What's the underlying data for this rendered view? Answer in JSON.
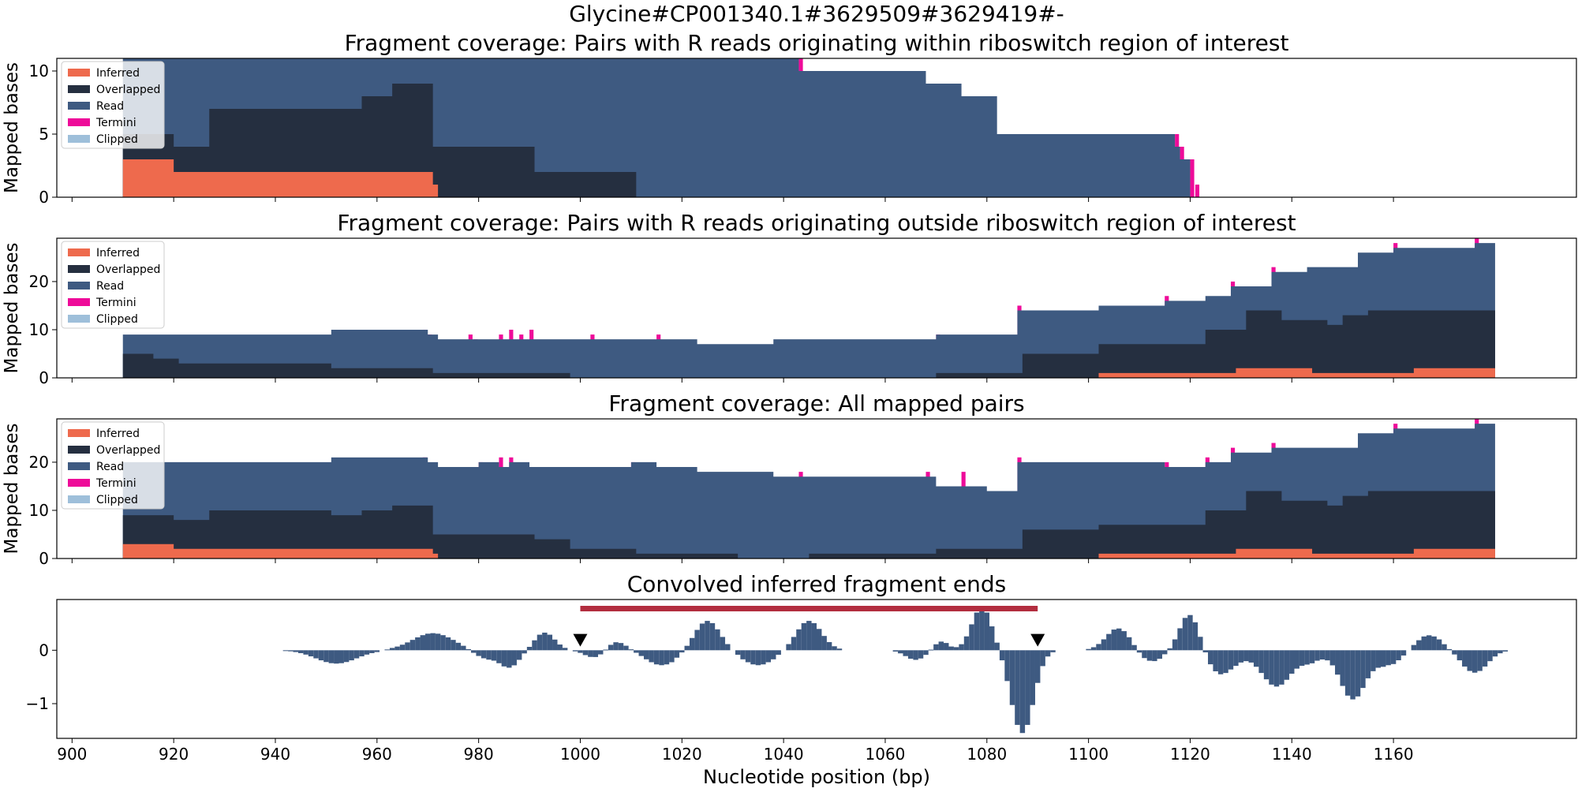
{
  "figure": {
    "suptitle": "Glycine#CP001340.1#3629509#3629419#-",
    "xlabel": "Nucleotide position (bp)"
  },
  "colors": {
    "inferred": "#ee6a4d",
    "overlapped": "#252f40",
    "read": "#3e5a81",
    "termini": "#ee0b99",
    "clipped": "#9ebfda",
    "marker": "#b22d3f",
    "ends": "#3e5a81"
  },
  "chart_data": [
    {
      "type": "area",
      "title": "Fragment coverage: Pairs with R reads originating within riboswitch region of interest",
      "ylabel": "Mapped bases",
      "xlim": [
        897,
        1196
      ],
      "ylim": [
        0,
        11
      ],
      "yticks": [
        0,
        5,
        10
      ],
      "legend": [
        "Inferred",
        "Overlapped",
        "Read",
        "Termini",
        "Clipped"
      ],
      "legend_position": "upper-left",
      "series": {
        "inferred": [
          [
            910,
            3
          ],
          [
            920,
            2
          ],
          [
            970,
            2
          ],
          [
            971,
            1
          ],
          [
            972,
            0
          ]
        ],
        "overlapped": [
          [
            910,
            5
          ],
          [
            920,
            4
          ],
          [
            927,
            7
          ],
          [
            957,
            8
          ],
          [
            963,
            9
          ],
          [
            971,
            4
          ],
          [
            991,
            2
          ],
          [
            1011,
            0
          ]
        ],
        "read": [
          [
            910,
            11
          ],
          [
            1043,
            10
          ],
          [
            1044,
            10
          ],
          [
            1068,
            9
          ],
          [
            1075,
            8
          ],
          [
            1082,
            5
          ],
          [
            1117,
            4
          ],
          [
            1118,
            3
          ],
          [
            1120,
            0
          ]
        ],
        "termini": [
          [
            1043,
            11
          ],
          [
            1044,
            0
          ],
          [
            1068,
            9
          ],
          [
            1069,
            0
          ],
          [
            1075,
            8
          ],
          [
            1076,
            0
          ],
          [
            1117,
            5
          ],
          [
            1118,
            0
          ],
          [
            1118,
            4
          ],
          [
            1119,
            0
          ],
          [
            1120,
            3
          ],
          [
            1121,
            1
          ],
          [
            1122,
            0
          ]
        ]
      }
    },
    {
      "type": "area",
      "title": "Fragment coverage: Pairs with R reads originating outside riboswitch region of interest",
      "ylabel": "Mapped bases",
      "xlim": [
        897,
        1196
      ],
      "ylim": [
        0,
        29
      ],
      "yticks": [
        0,
        10,
        20
      ],
      "legend": [
        "Inferred",
        "Overlapped",
        "Read",
        "Termini",
        "Clipped"
      ],
      "legend_position": "upper-left",
      "series": {
        "inferred": [
          [
            910,
            0
          ],
          [
            1102,
            1
          ],
          [
            1129,
            2
          ],
          [
            1144,
            1
          ],
          [
            1164,
            2
          ],
          [
            1180,
            0
          ]
        ],
        "overlapped": [
          [
            910,
            5
          ],
          [
            916,
            4
          ],
          [
            921,
            3
          ],
          [
            951,
            2
          ],
          [
            971,
            1
          ],
          [
            998,
            0
          ],
          [
            1070,
            1
          ],
          [
            1087,
            5
          ],
          [
            1102,
            7
          ],
          [
            1123,
            10
          ],
          [
            1131,
            14
          ],
          [
            1138,
            12
          ],
          [
            1147,
            11
          ],
          [
            1150,
            13
          ],
          [
            1155,
            14
          ],
          [
            1168,
            14
          ],
          [
            1180,
            16
          ]
        ],
        "read": [
          [
            910,
            9
          ],
          [
            951,
            10
          ],
          [
            970,
            9
          ],
          [
            972,
            8
          ],
          [
            1002,
            8
          ],
          [
            1015,
            8
          ],
          [
            1023,
            7
          ],
          [
            1038,
            8
          ],
          [
            1070,
            9
          ],
          [
            1086,
            14
          ],
          [
            1102,
            15
          ],
          [
            1115,
            16
          ],
          [
            1123,
            17
          ],
          [
            1128,
            19
          ],
          [
            1136,
            22
          ],
          [
            1143,
            23
          ],
          [
            1153,
            26
          ],
          [
            1160,
            27
          ],
          [
            1176,
            28
          ],
          [
            1180,
            29
          ]
        ],
        "termini": [
          [
            969,
            10
          ],
          [
            970,
            9
          ],
          [
            978,
            9
          ],
          [
            979,
            8
          ],
          [
            984,
            9
          ],
          [
            986,
            10
          ],
          [
            988,
            9
          ],
          [
            990,
            10
          ],
          [
            1002,
            9
          ],
          [
            1015,
            9
          ],
          [
            1070,
            9
          ],
          [
            1086,
            15
          ],
          [
            1115,
            17
          ],
          [
            1128,
            20
          ],
          [
            1136,
            23
          ],
          [
            1160,
            28
          ],
          [
            1176,
            29
          ]
        ]
      }
    },
    {
      "type": "area",
      "title": "Fragment coverage: All mapped pairs",
      "ylabel": "Mapped bases",
      "xlim": [
        897,
        1196
      ],
      "ylim": [
        0,
        29
      ],
      "yticks": [
        0,
        10,
        20
      ],
      "legend": [
        "Inferred",
        "Overlapped",
        "Read",
        "Termini",
        "Clipped"
      ],
      "legend_position": "upper-left",
      "series": {
        "inferred": [
          [
            910,
            3
          ],
          [
            920,
            2
          ],
          [
            970,
            2
          ],
          [
            971,
            1
          ],
          [
            972,
            0
          ],
          [
            1102,
            1
          ],
          [
            1129,
            2
          ],
          [
            1144,
            1
          ],
          [
            1164,
            2
          ],
          [
            1180,
            0
          ]
        ],
        "overlapped": [
          [
            910,
            9
          ],
          [
            920,
            8
          ],
          [
            927,
            10
          ],
          [
            951,
            9
          ],
          [
            957,
            10
          ],
          [
            963,
            11
          ],
          [
            971,
            5
          ],
          [
            991,
            4
          ],
          [
            998,
            2
          ],
          [
            1011,
            1
          ],
          [
            1031,
            0
          ],
          [
            1045,
            1
          ],
          [
            1070,
            2
          ],
          [
            1087,
            6
          ],
          [
            1102,
            7
          ],
          [
            1123,
            10
          ],
          [
            1131,
            14
          ],
          [
            1138,
            12
          ],
          [
            1147,
            11
          ],
          [
            1150,
            13
          ],
          [
            1155,
            14
          ],
          [
            1168,
            14
          ],
          [
            1180,
            16
          ]
        ],
        "read": [
          [
            910,
            20
          ],
          [
            951,
            21
          ],
          [
            970,
            20
          ],
          [
            972,
            19
          ],
          [
            980,
            20
          ],
          [
            984,
            19
          ],
          [
            986,
            20
          ],
          [
            990,
            19
          ],
          [
            1002,
            19
          ],
          [
            1010,
            20
          ],
          [
            1015,
            19
          ],
          [
            1023,
            18
          ],
          [
            1038,
            17
          ],
          [
            1070,
            15
          ],
          [
            1080,
            14
          ],
          [
            1086,
            20
          ],
          [
            1115,
            19
          ],
          [
            1123,
            20
          ],
          [
            1128,
            22
          ],
          [
            1136,
            23
          ],
          [
            1153,
            26
          ],
          [
            1160,
            27
          ],
          [
            1176,
            28
          ],
          [
            1180,
            29
          ]
        ],
        "termini": [
          [
            969,
            21
          ],
          [
            980,
            20
          ],
          [
            984,
            21
          ],
          [
            986,
            21
          ],
          [
            1010,
            20
          ],
          [
            1043,
            18
          ],
          [
            1068,
            18
          ],
          [
            1075,
            18
          ],
          [
            1086,
            21
          ],
          [
            1115,
            20
          ],
          [
            1123,
            21
          ],
          [
            1128,
            23
          ],
          [
            1136,
            24
          ],
          [
            1160,
            28
          ],
          [
            1176,
            29
          ]
        ]
      }
    },
    {
      "type": "bar",
      "title": "Convolved inferred fragment ends",
      "xlabel": "Nucleotide position (bp)",
      "xlim": [
        897,
        1196
      ],
      "ylim": [
        -1.65,
        0.95
      ],
      "yticks": [
        0,
        -1
      ],
      "xticks": [
        900,
        920,
        940,
        960,
        980,
        1000,
        1020,
        1040,
        1060,
        1080,
        1100,
        1120,
        1140,
        1160
      ],
      "region_bar": [
        1000,
        1090
      ],
      "region_bar_y": 0.78,
      "markers": [
        1000,
        1090
      ],
      "bar_segments": [
        {
          "center": 952,
          "amp": -0.25,
          "width": 4
        },
        {
          "center": 971,
          "amp": 0.32,
          "width": 4
        },
        {
          "center": 981,
          "amp": -0.15,
          "width": 2
        },
        {
          "center": 986,
          "amp": -0.32,
          "width": 2
        },
        {
          "center": 993,
          "amp": 0.33,
          "width": 2
        },
        {
          "center": 1003,
          "amp": -0.15,
          "width": 2
        },
        {
          "center": 1007,
          "amp": 0.17,
          "width": 2
        },
        {
          "center": 1016,
          "amp": -0.28,
          "width": 3
        },
        {
          "center": 1025,
          "amp": 0.55,
          "width": 2.5
        },
        {
          "center": 1035,
          "amp": -0.28,
          "width": 3
        },
        {
          "center": 1045,
          "amp": 0.55,
          "width": 2.5
        },
        {
          "center": 1066,
          "amp": -0.18,
          "width": 2
        },
        {
          "center": 1071,
          "amp": 0.17,
          "width": 1.5
        },
        {
          "center": 1079,
          "amp": 0.8,
          "width": 2
        },
        {
          "center": 1087,
          "amp": -1.55,
          "width": 2.2
        },
        {
          "center": 1106,
          "amp": 0.42,
          "width": 2.5
        },
        {
          "center": 1112,
          "amp": -0.22,
          "width": 2.5
        },
        {
          "center": 1120,
          "amp": 0.72,
          "width": 2
        },
        {
          "center": 1126,
          "amp": -0.45,
          "width": 3
        },
        {
          "center": 1137,
          "amp": -0.68,
          "width": 3
        },
        {
          "center": 1144,
          "amp": -0.2,
          "width": 2
        },
        {
          "center": 1152,
          "amp": -0.92,
          "width": 2.5
        },
        {
          "center": 1159,
          "amp": -0.28,
          "width": 2.5
        },
        {
          "center": 1167,
          "amp": 0.28,
          "width": 2.5
        },
        {
          "center": 1176,
          "amp": -0.42,
          "width": 2.5
        }
      ]
    }
  ]
}
